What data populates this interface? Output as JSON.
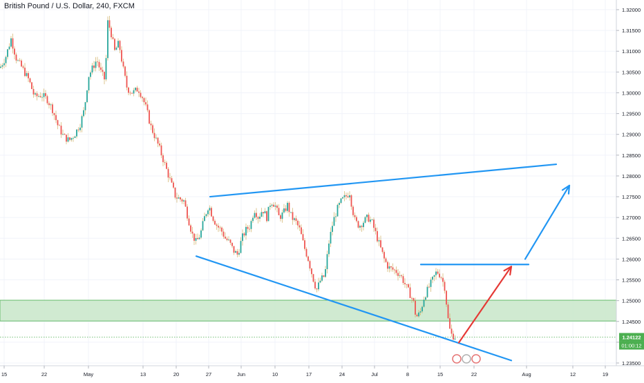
{
  "chart_data": {
    "type": "candlestick",
    "title": "British Pound / U.S. Dollar, 240, FXCM",
    "y_ticks": [
      "1.32000",
      "1.31500",
      "1.31000",
      "1.30500",
      "1.30000",
      "1.29500",
      "1.29000",
      "1.28500",
      "1.28000",
      "1.27500",
      "1.27000",
      "1.26500",
      "1.26000",
      "1.25500",
      "1.25000",
      "1.24500",
      "1.24000",
      "1.23500"
    ],
    "ylim": [
      1.2335,
      1.3208
    ],
    "x_ticks": [
      "15",
      "22",
      "May",
      "13",
      "20",
      "27",
      "Jun",
      "10",
      "17",
      "24",
      "Jul",
      "8",
      "15",
      "22",
      "Aug",
      "12",
      "19"
    ],
    "last_price": "1.24122",
    "countdown": "01:00:12",
    "colors": {
      "up": "#26a69a",
      "down": "#ef5350",
      "wick": "#c8a24a",
      "trendline": "#2196f3",
      "arrow_up": "#e53935",
      "zone": "#a5d6a7"
    },
    "series": [
      {
        "close_path": [
          [
            0,
            1.306
          ],
          [
            8,
            1.3085
          ],
          [
            16,
            1.313
          ],
          [
            24,
            1.308
          ],
          [
            32,
            1.306
          ],
          [
            42,
            1.303
          ],
          [
            50,
            1.299
          ],
          [
            60,
            1.2995
          ],
          [
            68,
            1.2985
          ],
          [
            76,
            1.296
          ],
          [
            84,
            1.292
          ],
          [
            92,
            1.2895
          ],
          [
            100,
            1.2885
          ],
          [
            108,
            1.29
          ],
          [
            116,
            1.2925
          ],
          [
            122,
            1.296
          ],
          [
            128,
            1.304
          ],
          [
            134,
            1.306
          ],
          [
            140,
            1.308
          ],
          [
            146,
            1.305
          ],
          [
            152,
            1.303
          ],
          [
            156,
            1.317
          ],
          [
            160,
            1.315
          ],
          [
            166,
            1.31
          ],
          [
            172,
            1.312
          ],
          [
            178,
            1.306
          ],
          [
            184,
            1.301
          ],
          [
            192,
            1.3
          ],
          [
            200,
            1.301
          ],
          [
            206,
            1.299
          ],
          [
            212,
            1.296
          ],
          [
            218,
            1.292
          ],
          [
            224,
            1.2895
          ],
          [
            230,
            1.287
          ],
          [
            236,
            1.284
          ],
          [
            242,
            1.281
          ],
          [
            248,
            1.278
          ],
          [
            254,
            1.275
          ],
          [
            260,
            1.2745
          ],
          [
            266,
            1.274
          ],
          [
            272,
            1.27
          ],
          [
            278,
            1.266
          ],
          [
            284,
            1.264
          ],
          [
            290,
            1.266
          ],
          [
            296,
            1.27
          ],
          [
            302,
            1.273
          ],
          [
            308,
            1.27
          ],
          [
            314,
            1.268
          ],
          [
            320,
            1.267
          ],
          [
            326,
            1.265
          ],
          [
            332,
            1.264
          ],
          [
            338,
            1.262
          ],
          [
            344,
            1.261
          ],
          [
            350,
            1.265
          ],
          [
            356,
            1.267
          ],
          [
            362,
            1.268
          ],
          [
            368,
            1.272
          ],
          [
            374,
            1.27
          ],
          [
            380,
            1.272
          ],
          [
            386,
            1.27
          ],
          [
            392,
            1.274
          ],
          [
            398,
            1.273
          ],
          [
            404,
            1.27
          ],
          [
            410,
            1.271
          ],
          [
            416,
            1.273
          ],
          [
            422,
            1.27
          ],
          [
            428,
            1.269
          ],
          [
            434,
            1.267
          ],
          [
            440,
            1.263
          ],
          [
            446,
            1.26
          ],
          [
            452,
            1.256
          ],
          [
            458,
            1.2525
          ],
          [
            464,
            1.255
          ],
          [
            470,
            1.256
          ],
          [
            476,
            1.264
          ],
          [
            482,
            1.269
          ],
          [
            488,
            1.272
          ],
          [
            494,
            1.274
          ],
          [
            500,
            1.275
          ],
          [
            506,
            1.276
          ],
          [
            510,
            1.272
          ],
          [
            514,
            1.269
          ],
          [
            520,
            1.268
          ],
          [
            526,
            1.269
          ],
          [
            532,
            1.27
          ],
          [
            538,
            1.269
          ],
          [
            544,
            1.266
          ],
          [
            550,
            1.263
          ],
          [
            556,
            1.26
          ],
          [
            562,
            1.258
          ],
          [
            568,
            1.2575
          ],
          [
            574,
            1.257
          ],
          [
            580,
            1.256
          ],
          [
            586,
            1.254
          ],
          [
            592,
            1.252
          ],
          [
            598,
            1.25
          ],
          [
            602,
            1.246
          ],
          [
            608,
            1.247
          ],
          [
            614,
            1.251
          ],
          [
            620,
            1.253
          ],
          [
            626,
            1.255
          ],
          [
            632,
            1.257
          ],
          [
            638,
            1.256
          ],
          [
            644,
            1.253
          ],
          [
            648,
            1.246
          ],
          [
            652,
            1.242
          ],
          [
            656,
            1.2415
          ],
          [
            660,
            1.2412
          ]
        ]
      }
    ],
    "annotations": [
      {
        "kind": "support-zone",
        "y_range": [
          1.2451,
          1.2501
        ]
      },
      {
        "kind": "trendline",
        "from": [
          1.275,
          304
        ],
        "to": [
          1.2828,
          805
        ]
      },
      {
        "kind": "trendline",
        "from": [
          1.2607,
          284
        ],
        "to": [
          1.2356,
          740
        ]
      },
      {
        "kind": "horizontal-line",
        "y": 1.2587,
        "x_from": 609,
        "x_to": 765
      },
      {
        "kind": "arrow",
        "color": "red",
        "from": [
          1.2399,
          664
        ],
        "to": [
          1.2582,
          740
        ]
      },
      {
        "kind": "arrow",
        "color": "blue",
        "from": [
          1.26,
          760
        ],
        "to": [
          1.2777,
          824
        ]
      }
    ]
  }
}
